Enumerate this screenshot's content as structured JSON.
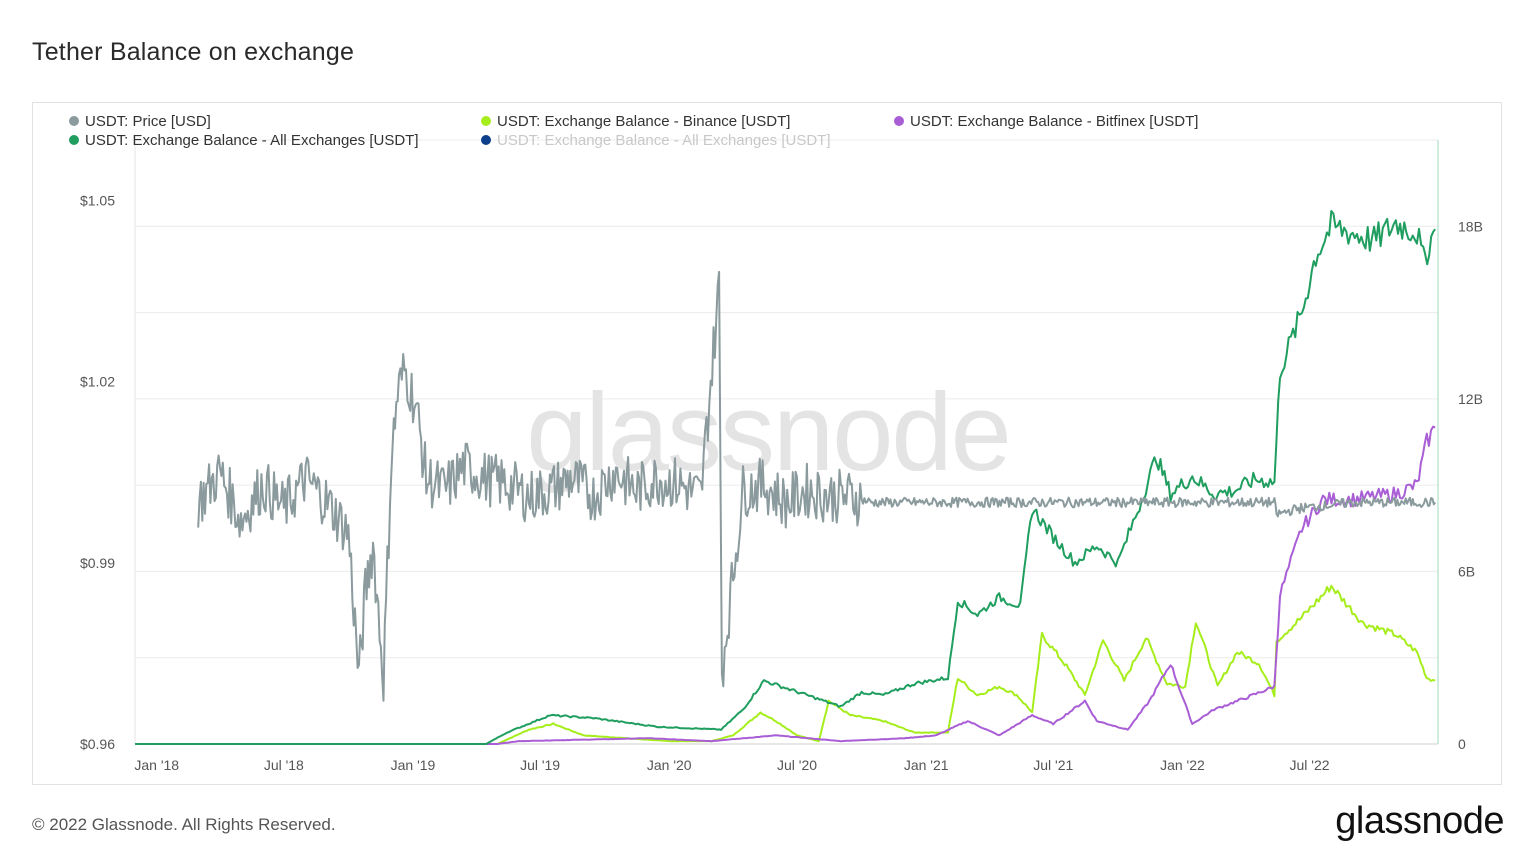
{
  "page": {
    "title": "Tether Balance on exchange",
    "footer": "© 2022 Glassnode. All Rights Reserved.",
    "brand": "glassnode",
    "watermark": "glassnode"
  },
  "chart_data": {
    "type": "line",
    "title": "Tether Balance on exchange",
    "legend_position": "top-left",
    "grid": true,
    "x_axis": {
      "type": "date",
      "range": [
        "2017-12-01",
        "2022-12-31"
      ],
      "tick_labels": [
        "Jan '18",
        "Jul '18",
        "Jan '19",
        "Jul '19",
        "Jan '20",
        "Jul '20",
        "Jan '21",
        "Jul '21",
        "Jan '22",
        "Jul '22"
      ],
      "tick_dates": [
        "2018-01-01",
        "2018-07-01",
        "2019-01-01",
        "2019-07-01",
        "2020-01-01",
        "2020-07-01",
        "2021-01-01",
        "2021-07-01",
        "2022-01-01",
        "2022-07-01"
      ]
    },
    "y_left": {
      "unit": "USD",
      "range": [
        0.96,
        1.06
      ],
      "tick_values": [
        0.96,
        0.99,
        1.02,
        1.05
      ],
      "tick_labels": [
        "$0.96",
        "$0.99",
        "$1.02",
        "$1.05"
      ]
    },
    "y_right": {
      "unit": "USDT",
      "range": [
        0,
        21000000000
      ],
      "tick_values": [
        0,
        6000000000,
        12000000000,
        18000000000
      ],
      "tick_labels": [
        "0",
        "6B",
        "12B",
        "18B"
      ]
    },
    "series": [
      {
        "name": "USDT: Price [USD]",
        "color": "#8a9a9d",
        "axis": "left",
        "visible": true,
        "points": [
          [
            "2018-03-01",
            1.0
          ],
          [
            "2018-04-01",
            1.005
          ],
          [
            "2018-05-01",
            0.997
          ],
          [
            "2018-06-01",
            1.003
          ],
          [
            "2018-07-01",
            0.999
          ],
          [
            "2018-08-01",
            1.004
          ],
          [
            "2018-09-01",
            1.0
          ],
          [
            "2018-10-01",
            0.995
          ],
          [
            "2018-10-16",
            0.971
          ],
          [
            "2018-10-25",
            0.985
          ],
          [
            "2018-11-05",
            0.993
          ],
          [
            "2018-11-20",
            0.971
          ],
          [
            "2018-12-01",
            1.007
          ],
          [
            "2018-12-10",
            1.018
          ],
          [
            "2018-12-20",
            1.022
          ],
          [
            "2019-01-05",
            1.016
          ],
          [
            "2019-01-20",
            1.004
          ],
          [
            "2019-02-15",
            1.002
          ],
          [
            "2019-03-15",
            1.006
          ],
          [
            "2019-04-15",
            1.004
          ],
          [
            "2019-05-15",
            1.003
          ],
          [
            "2019-06-15",
            1.001
          ],
          [
            "2019-07-15",
            1.002
          ],
          [
            "2019-08-15",
            1.004
          ],
          [
            "2019-09-15",
            1.001
          ],
          [
            "2019-10-15",
            1.005
          ],
          [
            "2019-11-15",
            1.002
          ],
          [
            "2019-12-15",
            1.004
          ],
          [
            "2020-01-15",
            1.003
          ],
          [
            "2020-02-15",
            1.001
          ],
          [
            "2020-03-12",
            1.036
          ],
          [
            "2020-03-16",
            0.972
          ],
          [
            "2020-04-15",
            1.002
          ],
          [
            "2020-05-15",
            1.003
          ],
          [
            "2020-06-15",
            1.0
          ],
          [
            "2020-07-15",
            1.002
          ],
          [
            "2020-08-15",
            1.001
          ],
          [
            "2020-09-15",
            1.001
          ],
          [
            "2020-10-15",
            1.0
          ],
          [
            "2020-11-15",
            1.0
          ],
          [
            "2020-12-15",
            1.0
          ],
          [
            "2021-01-15",
            1.0
          ],
          [
            "2021-02-15",
            1.0
          ],
          [
            "2021-03-15",
            1.0
          ],
          [
            "2021-05-01",
            1.0
          ],
          [
            "2021-07-01",
            1.0
          ],
          [
            "2021-09-01",
            1.0
          ],
          [
            "2021-11-01",
            1.0
          ],
          [
            "2022-01-01",
            1.0
          ],
          [
            "2022-03-01",
            1.0
          ],
          [
            "2022-05-12",
            1.0
          ],
          [
            "2022-05-15",
            0.998
          ],
          [
            "2022-06-15",
            0.999
          ],
          [
            "2022-09-01",
            1.0
          ],
          [
            "2022-11-01",
            1.0
          ],
          [
            "2022-12-27",
            1.0
          ]
        ]
      },
      {
        "name": "USDT: Exchange Balance - Binance [USDT]",
        "color": "#a6ee1b",
        "axis": "right",
        "visible": true,
        "points": [
          [
            "2017-12-01",
            0
          ],
          [
            "2019-05-01",
            0
          ],
          [
            "2019-06-15",
            500000000
          ],
          [
            "2019-07-20",
            700000000
          ],
          [
            "2019-09-01",
            300000000
          ],
          [
            "2019-11-01",
            200000000
          ],
          [
            "2020-01-01",
            100000000
          ],
          [
            "2020-03-01",
            100000000
          ],
          [
            "2020-04-01",
            300000000
          ],
          [
            "2020-05-10",
            1100000000
          ],
          [
            "2020-06-01",
            800000000
          ],
          [
            "2020-07-01",
            300000000
          ],
          [
            "2020-08-01",
            100000000
          ],
          [
            "2020-08-15",
            1500000000
          ],
          [
            "2020-09-15",
            1000000000
          ],
          [
            "2020-11-01",
            800000000
          ],
          [
            "2020-12-15",
            400000000
          ],
          [
            "2021-02-01",
            400000000
          ],
          [
            "2021-02-15",
            2300000000
          ],
          [
            "2021-03-15",
            1700000000
          ],
          [
            "2021-04-15",
            2000000000
          ],
          [
            "2021-05-10",
            1700000000
          ],
          [
            "2021-06-01",
            1100000000
          ],
          [
            "2021-06-15",
            3800000000
          ],
          [
            "2021-07-20",
            2700000000
          ],
          [
            "2021-08-15",
            1700000000
          ],
          [
            "2021-09-10",
            3600000000
          ],
          [
            "2021-10-10",
            2200000000
          ],
          [
            "2021-11-10",
            3700000000
          ],
          [
            "2021-12-10",
            2100000000
          ],
          [
            "2022-01-05",
            2000000000
          ],
          [
            "2022-01-20",
            4300000000
          ],
          [
            "2022-02-20",
            2000000000
          ],
          [
            "2022-03-20",
            3200000000
          ],
          [
            "2022-04-20",
            2800000000
          ],
          [
            "2022-05-12",
            1700000000
          ],
          [
            "2022-05-15",
            3600000000
          ],
          [
            "2022-06-20",
            4400000000
          ],
          [
            "2022-08-01",
            5500000000
          ],
          [
            "2022-09-15",
            4200000000
          ],
          [
            "2022-11-01",
            3800000000
          ],
          [
            "2022-12-01",
            3200000000
          ],
          [
            "2022-12-15",
            2300000000
          ],
          [
            "2022-12-27",
            2200000000
          ]
        ]
      },
      {
        "name": "USDT: Exchange Balance - Bitfinex [USDT]",
        "color": "#a95ed6",
        "axis": "right",
        "visible": true,
        "points": [
          [
            "2017-12-01",
            0
          ],
          [
            "2019-05-01",
            0
          ],
          [
            "2019-06-01",
            100000000
          ],
          [
            "2019-12-01",
            200000000
          ],
          [
            "2020-03-01",
            100000000
          ],
          [
            "2020-06-01",
            300000000
          ],
          [
            "2020-09-01",
            100000000
          ],
          [
            "2020-12-01",
            200000000
          ],
          [
            "2021-01-15",
            300000000
          ],
          [
            "2021-03-01",
            800000000
          ],
          [
            "2021-04-15",
            300000000
          ],
          [
            "2021-06-01",
            1000000000
          ],
          [
            "2021-07-01",
            700000000
          ],
          [
            "2021-08-15",
            1500000000
          ],
          [
            "2021-09-01",
            800000000
          ],
          [
            "2021-10-15",
            500000000
          ],
          [
            "2021-11-15",
            1500000000
          ],
          [
            "2021-12-15",
            2800000000
          ],
          [
            "2022-01-15",
            700000000
          ],
          [
            "2022-02-15",
            1200000000
          ],
          [
            "2022-04-01",
            1600000000
          ],
          [
            "2022-05-12",
            2000000000
          ],
          [
            "2022-05-20",
            5200000000
          ],
          [
            "2022-06-20",
            7500000000
          ],
          [
            "2022-07-20",
            8500000000
          ],
          [
            "2022-09-01",
            8500000000
          ],
          [
            "2022-11-01",
            8700000000
          ],
          [
            "2022-12-01",
            9000000000
          ],
          [
            "2022-12-15",
            10500000000
          ],
          [
            "2022-12-27",
            11000000000
          ]
        ]
      },
      {
        "name": "USDT: Exchange Balance - All Exchanges [USDT]",
        "color": "#1f9e5f",
        "axis": "right",
        "visible": true,
        "points": [
          [
            "2017-12-01",
            0
          ],
          [
            "2019-04-15",
            0
          ],
          [
            "2019-05-15",
            400000000
          ],
          [
            "2019-07-15",
            1000000000
          ],
          [
            "2019-09-15",
            900000000
          ],
          [
            "2019-12-15",
            600000000
          ],
          [
            "2020-03-15",
            500000000
          ],
          [
            "2020-04-15",
            1200000000
          ],
          [
            "2020-05-15",
            2200000000
          ],
          [
            "2020-07-15",
            1700000000
          ],
          [
            "2020-09-01",
            1300000000
          ],
          [
            "2020-10-01",
            1800000000
          ],
          [
            "2020-11-01",
            1700000000
          ],
          [
            "2020-12-15",
            2100000000
          ],
          [
            "2021-02-01",
            2300000000
          ],
          [
            "2021-02-15",
            5000000000
          ],
          [
            "2021-03-15",
            4500000000
          ],
          [
            "2021-04-15",
            5100000000
          ],
          [
            "2021-05-15",
            4800000000
          ],
          [
            "2021-06-01",
            8200000000
          ],
          [
            "2021-07-01",
            7200000000
          ],
          [
            "2021-08-01",
            6300000000
          ],
          [
            "2021-09-01",
            6900000000
          ],
          [
            "2021-10-01",
            6300000000
          ],
          [
            "2021-11-01",
            8300000000
          ],
          [
            "2021-11-25",
            10000000000
          ],
          [
            "2021-12-15",
            8700000000
          ],
          [
            "2022-01-15",
            9300000000
          ],
          [
            "2022-02-15",
            8700000000
          ],
          [
            "2022-03-15",
            8800000000
          ],
          [
            "2022-04-15",
            9200000000
          ],
          [
            "2022-05-12",
            9100000000
          ],
          [
            "2022-05-20",
            13000000000
          ],
          [
            "2022-06-20",
            15000000000
          ],
          [
            "2022-07-10",
            17000000000
          ],
          [
            "2022-08-01",
            18000000000
          ],
          [
            "2022-10-01",
            17500000000
          ],
          [
            "2022-11-01",
            18100000000
          ],
          [
            "2022-12-01",
            17800000000
          ],
          [
            "2022-12-10",
            16800000000
          ],
          [
            "2022-12-27",
            17900000000
          ]
        ]
      },
      {
        "name": "USDT: Exchange Balance - All Exchanges [USDT]",
        "color": "#0d3f8a",
        "axis": "right",
        "visible": false,
        "points": []
      }
    ]
  }
}
